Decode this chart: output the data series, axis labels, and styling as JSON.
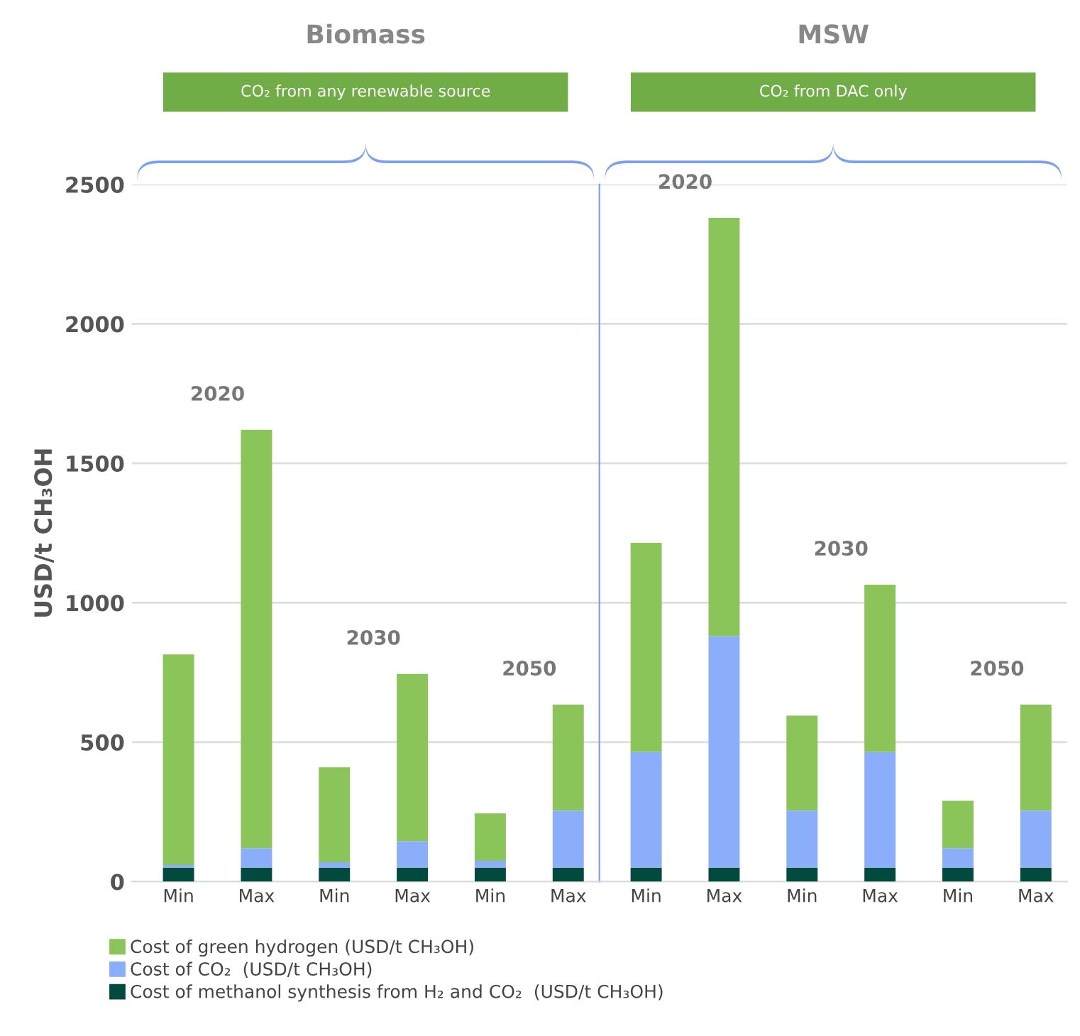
{
  "chart_data": [
    {
      "type": "bar",
      "stacked": true,
      "title": "Biomass",
      "ylabel": "USD/t CH₃OH",
      "categories": [
        "Min",
        "Max",
        "Min",
        "Max",
        "Min",
        "Max"
      ],
      "series": [
        {
          "name": "Cost of methanol synthesis from H₂ and CO₂  (USD/t CH₃OH)",
          "color": "#034a3e",
          "values": [
            50,
            50,
            50,
            50,
            50,
            50
          ]
        },
        {
          "name": "Cost of CO₂  (USD/t CH₃OH)",
          "color": "#8aaefa",
          "values": [
            10,
            70,
            20,
            95,
            25,
            205
          ]
        },
        {
          "name": "Cost of green hydrogen (USD/t CH₃OH)",
          "color": "#8bc55a",
          "values": [
            755,
            1500,
            340,
            600,
            170,
            380
          ]
        }
      ],
      "ylim": [
        0,
        2500
      ],
      "yticks": [
        0,
        500,
        1000,
        1500,
        2000,
        2500
      ],
      "grid": "y",
      "legend": "bottom left",
      "annotations": [
        "CO₂ from any renewable source",
        "2020",
        "2030",
        "2050"
      ]
    },
    {
      "type": "bar",
      "stacked": true,
      "title": "MSW",
      "categories": [
        "Min",
        "Max",
        "Min",
        "Max",
        "Min",
        "Max"
      ],
      "series": [
        {
          "color": "#034a3e",
          "values": [
            50,
            50,
            50,
            50,
            50,
            50
          ]
        },
        {
          "color": "#8aaefa",
          "values": [
            415,
            830,
            205,
            415,
            70,
            205
          ]
        },
        {
          "color": "#8bc55a",
          "values": [
            750,
            1500,
            340,
            600,
            170,
            380
          ]
        }
      ],
      "ylim": [
        0,
        2500
      ],
      "yticks": [
        0,
        500,
        1000,
        1500,
        2000,
        2500
      ],
      "grid": "y",
      "tick_labels": "x",
      "annotations": [
        "CO₂ from DAC only",
        "2020",
        "2030",
        "2050"
      ]
    }
  ]
}
